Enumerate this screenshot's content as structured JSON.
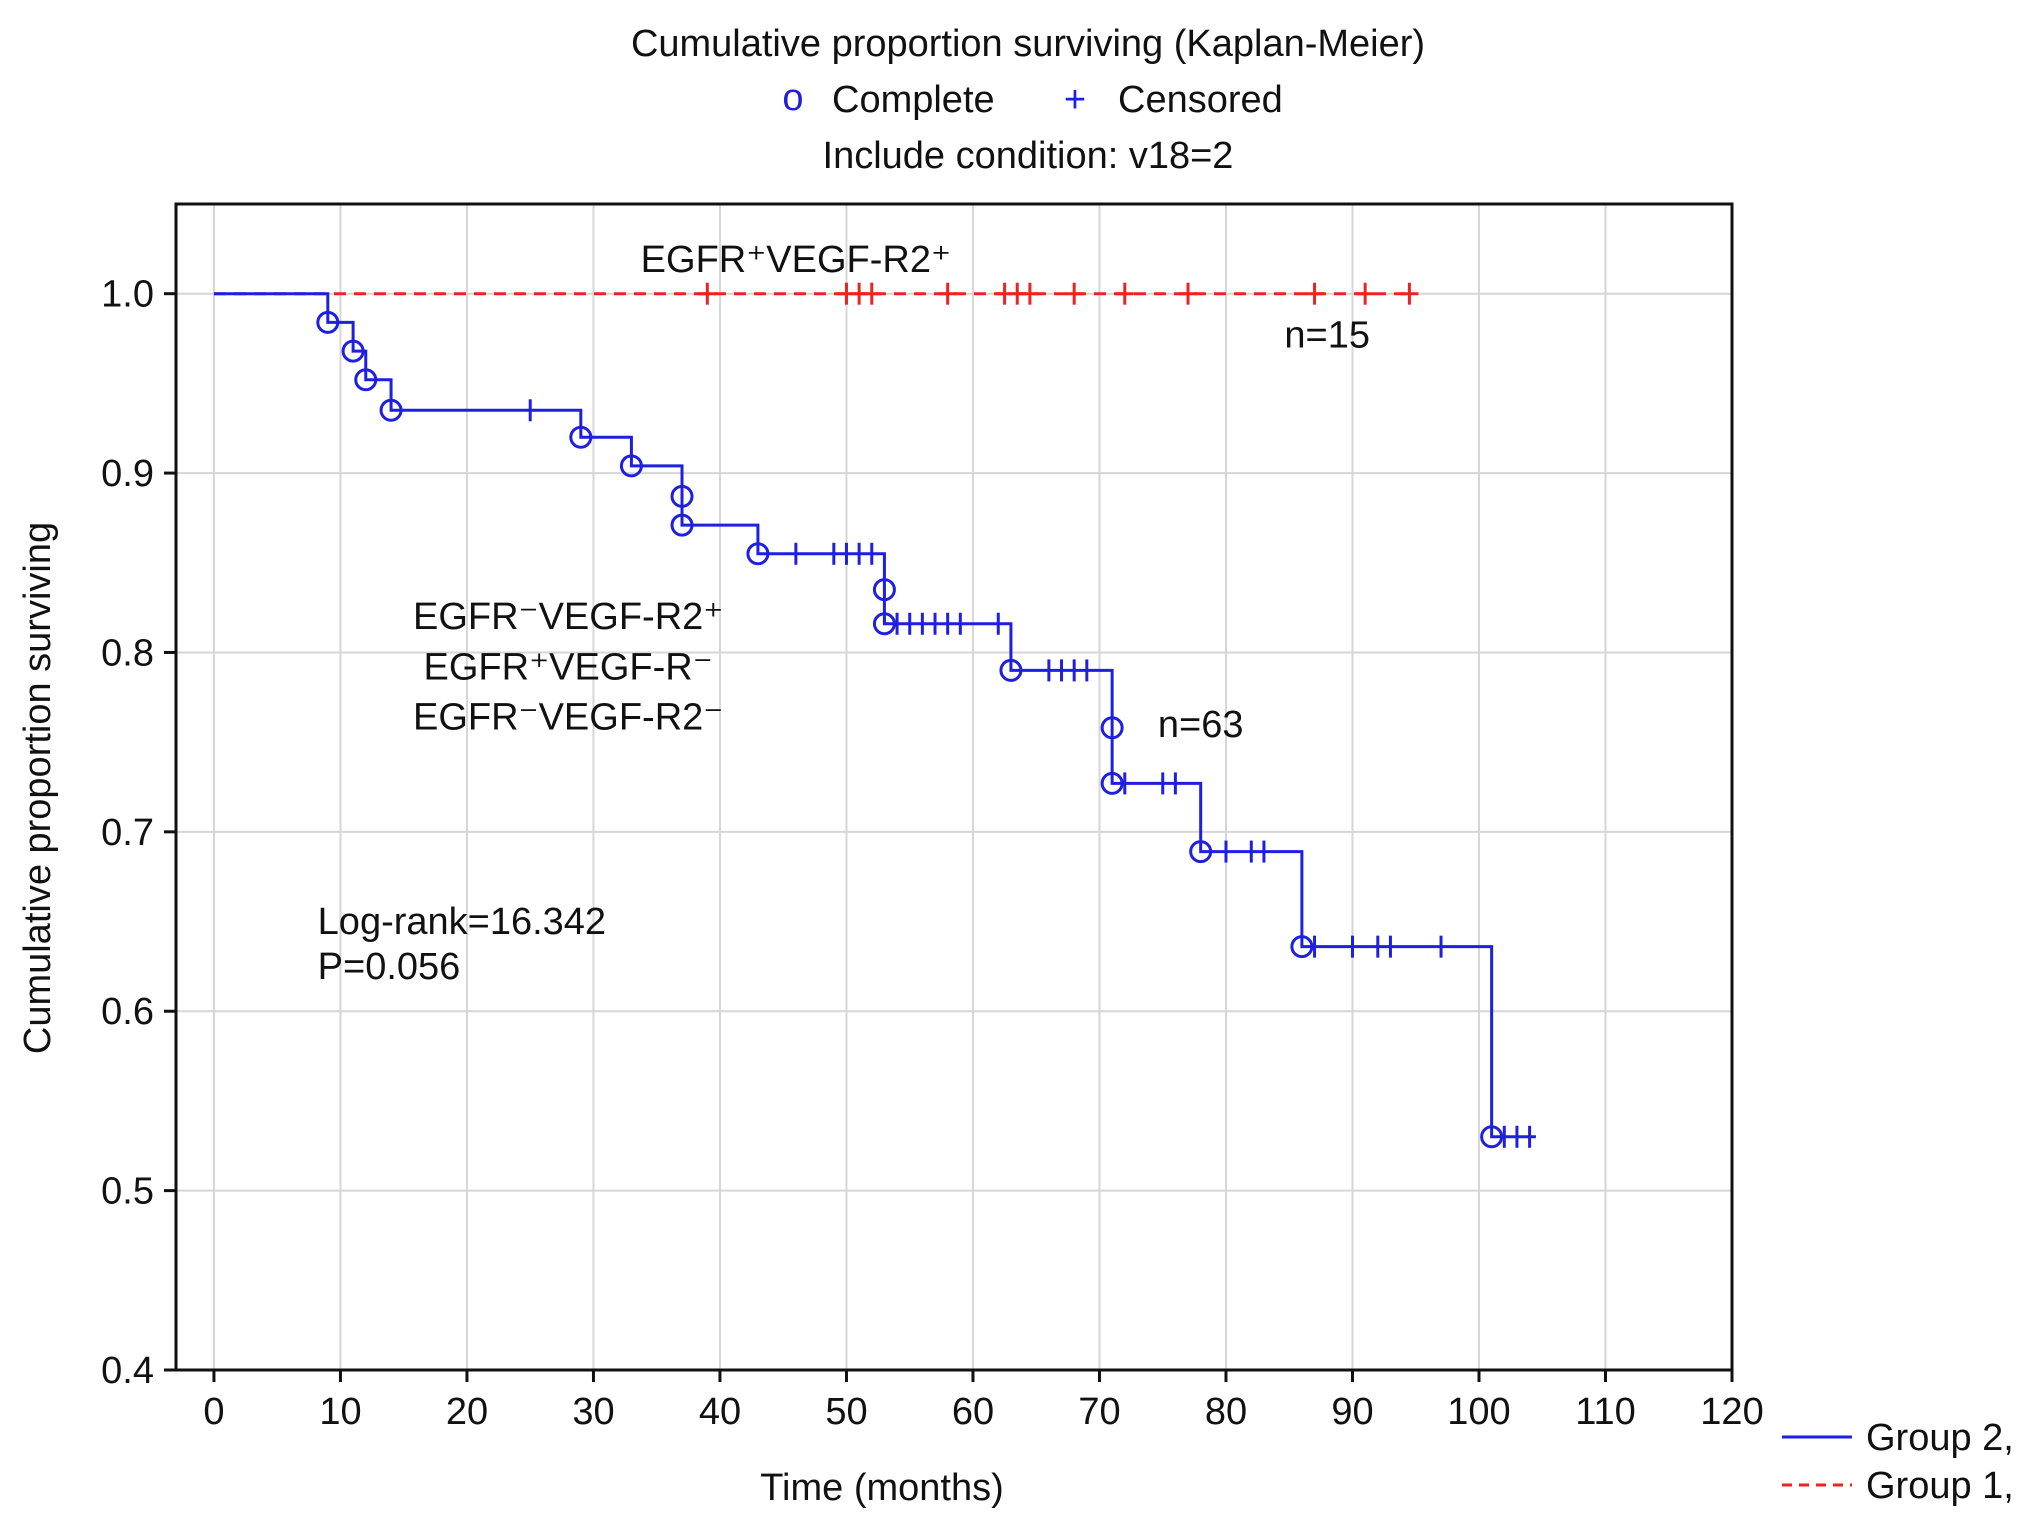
{
  "chart_data": {
    "type": "line",
    "title": "Cumulative proportion  surviving (Kaplan-Meier)",
    "legend_top": {
      "complete_symbol": "o",
      "complete_label": "Complete",
      "censored_symbol": "+",
      "censored_label": "Censored",
      "condition": "Include condition: v18=2"
    },
    "xlabel": "Time (months)",
    "ylabel": "Cumulative proportion  surviving",
    "xlim": [
      -3,
      120
    ],
    "ylim": [
      0.4,
      1.05
    ],
    "xticks": [
      0,
      10,
      20,
      30,
      40,
      50,
      60,
      70,
      80,
      90,
      100,
      110,
      120
    ],
    "xtick_labels": [
      "0",
      "10",
      "20",
      "30",
      "40",
      "50",
      "60",
      "70",
      "80",
      "90",
      "100",
      "110",
      "120"
    ],
    "yticks": [
      0.4,
      0.5,
      0.6,
      0.7,
      0.8,
      0.9,
      1.0
    ],
    "ytick_labels": [
      "0.4",
      "0.5",
      "0.6",
      "0.7",
      "0.8",
      "0.9",
      "1.0"
    ],
    "grid": true,
    "legend_position": "bottom-right, outside plot",
    "series": [
      {
        "name": "Group 1,",
        "color": "#ee2222",
        "dash": true,
        "steps": [
          [
            0,
            1.0
          ],
          [
            94.5,
            1.0
          ]
        ],
        "complete": [],
        "censored": [
          [
            39,
            1.0
          ],
          [
            50,
            1.0
          ],
          [
            51,
            1.0
          ],
          [
            52,
            1.0
          ],
          [
            58,
            1.0
          ],
          [
            62.5,
            1.0
          ],
          [
            63.5,
            1.0
          ],
          [
            64.5,
            1.0
          ],
          [
            68,
            1.0
          ],
          [
            72,
            1.0
          ],
          [
            77,
            1.0
          ],
          [
            87,
            1.0
          ],
          [
            91,
            1.0
          ],
          [
            94.5,
            1.0
          ]
        ]
      },
      {
        "name": "Group 2,",
        "color": "#1f1fdf",
        "dash": false,
        "steps": [
          [
            0,
            1.0
          ],
          [
            9,
            0.984
          ],
          [
            11,
            0.968
          ],
          [
            12,
            0.952
          ],
          [
            14,
            0.935
          ],
          [
            29,
            0.92
          ],
          [
            33,
            0.904
          ],
          [
            37,
            0.871
          ],
          [
            43,
            0.855
          ],
          [
            53,
            0.816
          ],
          [
            63,
            0.79
          ],
          [
            71,
            0.727
          ],
          [
            78,
            0.689
          ],
          [
            86,
            0.636
          ],
          [
            101,
            0.53
          ],
          [
            104.5,
            0.53
          ]
        ],
        "complete": [
          [
            9,
            0.984
          ],
          [
            11,
            0.968
          ],
          [
            12,
            0.952
          ],
          [
            14,
            0.935
          ],
          [
            29,
            0.92
          ],
          [
            33,
            0.904
          ],
          [
            37,
            0.887
          ],
          [
            37,
            0.871
          ],
          [
            43,
            0.855
          ],
          [
            53,
            0.835
          ],
          [
            53,
            0.816
          ],
          [
            63,
            0.79
          ],
          [
            71,
            0.758
          ],
          [
            71,
            0.727
          ],
          [
            78,
            0.689
          ],
          [
            86,
            0.636
          ],
          [
            101,
            0.53
          ]
        ],
        "censored": [
          [
            25,
            0.935
          ],
          [
            46,
            0.855
          ],
          [
            49,
            0.855
          ],
          [
            50,
            0.855
          ],
          [
            51,
            0.855
          ],
          [
            52,
            0.855
          ],
          [
            54,
            0.816
          ],
          [
            55,
            0.816
          ],
          [
            56,
            0.816
          ],
          [
            57,
            0.816
          ],
          [
            58,
            0.816
          ],
          [
            59,
            0.816
          ],
          [
            62,
            0.816
          ],
          [
            66,
            0.79
          ],
          [
            67,
            0.79
          ],
          [
            68,
            0.79
          ],
          [
            69,
            0.79
          ],
          [
            72,
            0.727
          ],
          [
            75,
            0.727
          ],
          [
            76,
            0.727
          ],
          [
            80,
            0.689
          ],
          [
            82,
            0.689
          ],
          [
            83,
            0.689
          ],
          [
            87,
            0.636
          ],
          [
            90,
            0.636
          ],
          [
            92,
            0.636
          ],
          [
            93,
            0.636
          ],
          [
            97,
            0.636
          ],
          [
            102,
            0.53
          ],
          [
            103,
            0.53
          ],
          [
            104,
            0.53
          ]
        ]
      }
    ],
    "annotations": [
      {
        "text": "EGFR⁺VEGF-R2⁺",
        "x": 46,
        "y": 1.012
      },
      {
        "text": "n=15",
        "x": 88,
        "y": 0.97
      },
      {
        "text": "EGFR⁻VEGF-R2⁺",
        "x": 28,
        "y": 0.813
      },
      {
        "text": "EGFR⁺VEGF-R⁻",
        "x": 28,
        "y": 0.785
      },
      {
        "text": "EGFR⁻VEGF-R2⁻",
        "x": 28,
        "y": 0.757
      },
      {
        "text": "n=63",
        "x": 78,
        "y": 0.753
      },
      {
        "text": "Log-rank=16.342",
        "x": 8.2,
        "y": 0.643
      },
      {
        "text": "P=0.056",
        "x": 8.2,
        "y": 0.618
      }
    ]
  }
}
